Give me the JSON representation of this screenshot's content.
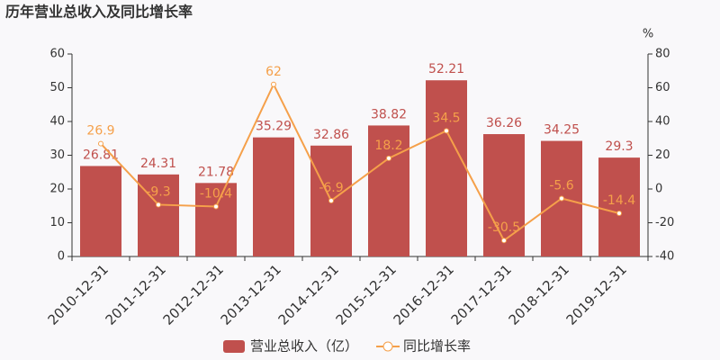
{
  "chart_data": {
    "type": "bar",
    "title": "历年营业总收入及同比增长率",
    "y2label": "%",
    "categories": [
      "2010-12-31",
      "2011-12-31",
      "2012-12-31",
      "2013-12-31",
      "2014-12-31",
      "2015-12-31",
      "2016-12-31",
      "2017-12-31",
      "2018-12-31",
      "2019-12-31"
    ],
    "series": [
      {
        "name": "营业总收入（亿）",
        "type": "bar",
        "color": "#c0504d",
        "label_color": "#c0504d",
        "values": [
          26.81,
          24.31,
          21.78,
          35.29,
          32.86,
          38.82,
          52.21,
          36.26,
          34.25,
          29.3
        ]
      },
      {
        "name": "同比增长率",
        "type": "line",
        "axis": "y2",
        "color": "#f5a04a",
        "label_color": "#f5a04a",
        "values": [
          26.9,
          -9.3,
          -10.4,
          62,
          -6.9,
          18.2,
          34.5,
          -30.5,
          -5.6,
          -14.4
        ]
      }
    ],
    "ylim": [
      0,
      60
    ],
    "yticks": [
      0,
      10,
      20,
      30,
      40,
      50,
      60
    ],
    "y2lim": [
      -40,
      80
    ],
    "y2ticks": [
      -40,
      -20,
      0,
      20,
      40,
      60,
      80
    ]
  }
}
